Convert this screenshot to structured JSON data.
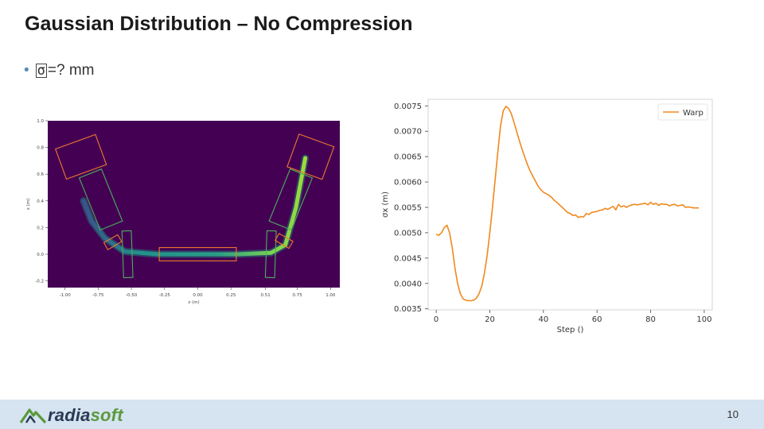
{
  "slide": {
    "title": "Gaussian Distribution – No Compression",
    "bullet": {
      "dot": "•",
      "symbol": "σ",
      "text": "=? mm"
    },
    "page_number": "10"
  },
  "footer": {
    "logo_text_a": "radia",
    "logo_text_b": "soft",
    "bg_color": "#d6e3f0"
  },
  "chart_data": [
    {
      "type": "heatmap",
      "description": "beam density in x–z plane with magnet outlines",
      "xlabel": "z (m)",
      "ylabel": "x (m)",
      "xticks": [
        "-1.00",
        "-0.75",
        "-0.50",
        "-0.25",
        "0.00",
        "0.25",
        "0.51",
        "0.75",
        "1.00"
      ],
      "yticks": [
        "1.0",
        "0.8",
        "0.6",
        "0.4",
        "0.2",
        "0.0",
        "-0.2"
      ],
      "xlim": [
        -1.13,
        1.07
      ],
      "ylim": [
        -0.25,
        1.0
      ],
      "colors": {
        "background": "#440154",
        "beam": "#35b779",
        "magnet_orange": "#f07a2a",
        "magnet_green": "#4cae5a"
      }
    },
    {
      "type": "line",
      "xlabel": "Step ()",
      "ylabel": "σx (m)",
      "xticks": [
        "0",
        "20",
        "40",
        "60",
        "80",
        "100"
      ],
      "yticks": [
        "0.0035",
        "0.0040",
        "0.0045",
        "0.0050",
        "0.0055",
        "0.0060",
        "0.0065",
        "0.0070",
        "0.0075"
      ],
      "xlim": [
        -3,
        103
      ],
      "ylim": [
        0.00348,
        0.00763
      ],
      "legend": "top-right",
      "series": [
        {
          "name": "Warp",
          "color": "#f0891e",
          "x": [
            0,
            1,
            2,
            3,
            4,
            5,
            6,
            7,
            8,
            9,
            10,
            11,
            12,
            13,
            14,
            15,
            16,
            17,
            18,
            19,
            20,
            21,
            22,
            23,
            24,
            25,
            26,
            27,
            28,
            29,
            30,
            31,
            32,
            33,
            34,
            35,
            36,
            37,
            38,
            39,
            40,
            41,
            42,
            43,
            44,
            45,
            46,
            47,
            48,
            49,
            50,
            51,
            52,
            53,
            54,
            55,
            56,
            57,
            58,
            59,
            60,
            61,
            62,
            63,
            64,
            65,
            66,
            67,
            68,
            69,
            70,
            71,
            72,
            73,
            74,
            75,
            76,
            77,
            78,
            79,
            80,
            81,
            82,
            83,
            84,
            85,
            86,
            87,
            88,
            89,
            90,
            91,
            92,
            93,
            94,
            95,
            96,
            97,
            98
          ],
          "y": [
            0.00497,
            0.00495,
            0.005,
            0.0051,
            0.00515,
            0.005,
            0.0047,
            0.0043,
            0.004,
            0.0038,
            0.0037,
            0.00367,
            0.00366,
            0.00366,
            0.00367,
            0.00371,
            0.0038,
            0.00395,
            0.0042,
            0.00455,
            0.005,
            0.0055,
            0.00605,
            0.0066,
            0.0071,
            0.0074,
            0.00749,
            0.00745,
            0.00735,
            0.00718,
            0.007,
            0.00682,
            0.00665,
            0.0065,
            0.00635,
            0.00622,
            0.00612,
            0.00602,
            0.00592,
            0.00585,
            0.0058,
            0.00577,
            0.00574,
            0.0057,
            0.00564,
            0.0056,
            0.00555,
            0.0055,
            0.00545,
            0.0054,
            0.00538,
            0.00534,
            0.00535,
            0.0053,
            0.00532,
            0.00531,
            0.00538,
            0.00536,
            0.0054,
            0.00541,
            0.00542,
            0.00544,
            0.00545,
            0.00548,
            0.00546,
            0.00549,
            0.00552,
            0.00545,
            0.00556,
            0.00551,
            0.00553,
            0.0055,
            0.00553,
            0.00555,
            0.00556,
            0.00555,
            0.00556,
            0.00557,
            0.00558,
            0.00555,
            0.0056,
            0.00556,
            0.00558,
            0.00554,
            0.00557,
            0.00556,
            0.00556,
            0.00553,
            0.00555,
            0.00556,
            0.00553,
            0.00554,
            0.00555,
            0.0055,
            0.00551,
            0.0055,
            0.00549,
            0.00549,
            0.00549
          ]
        }
      ]
    }
  ]
}
